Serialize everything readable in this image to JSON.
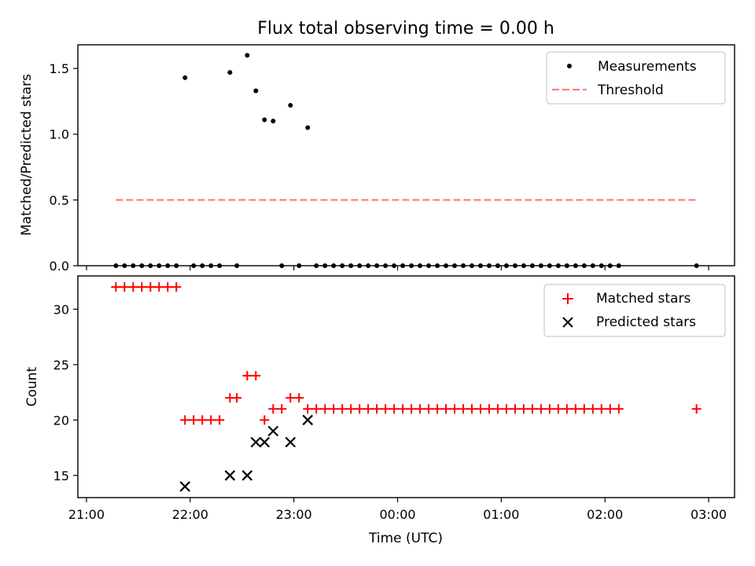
{
  "title": "Flux total observing time = 0.00 h",
  "chart_data": [
    {
      "type": "scatter",
      "ylabel": "Matched/Predicted stars",
      "ylim": [
        0,
        1.68
      ],
      "yticks": [
        0.0,
        0.5,
        1.0,
        1.5
      ],
      "ytick_labels": [
        "0.0",
        "0.5",
        "1.0",
        "1.5"
      ],
      "legend_position": "top-right",
      "series": [
        {
          "name": "Measurements",
          "kind": "points",
          "color": "#000000",
          "x": [
            "21:17",
            "21:22",
            "21:27",
            "21:32",
            "21:37",
            "21:42",
            "21:47",
            "21:52",
            "21:57",
            "22:02",
            "22:07",
            "22:12",
            "22:17",
            "22:23",
            "22:27",
            "22:33",
            "22:38",
            "22:43",
            "22:48",
            "22:53",
            "22:58",
            "23:03",
            "23:08",
            "23:13",
            "23:18",
            "23:23",
            "23:28",
            "23:33",
            "23:38",
            "23:43",
            "23:48",
            "23:53",
            "23:58",
            "00:03",
            "00:08",
            "00:13",
            "00:18",
            "00:23",
            "00:28",
            "00:33",
            "00:38",
            "00:43",
            "00:48",
            "00:53",
            "00:58",
            "01:03",
            "01:08",
            "01:13",
            "01:18",
            "01:23",
            "01:28",
            "01:33",
            "01:38",
            "01:43",
            "01:48",
            "01:53",
            "01:58",
            "02:03",
            "02:08",
            "02:53"
          ],
          "y": [
            0,
            0,
            0,
            0,
            0,
            0,
            0,
            0,
            1.43,
            0,
            0,
            0,
            0,
            1.47,
            0,
            1.6,
            1.33,
            1.11,
            1.1,
            0,
            1.22,
            0,
            1.05,
            0,
            0,
            0,
            0,
            0,
            0,
            0,
            0,
            0,
            0,
            0,
            0,
            0,
            0,
            0,
            0,
            0,
            0,
            0,
            0,
            0,
            0,
            0,
            0,
            0,
            0,
            0,
            0,
            0,
            0,
            0,
            0,
            0,
            0,
            0,
            0,
            0
          ]
        },
        {
          "name": "Threshold",
          "kind": "dashed-line",
          "color": "#ff7f7f",
          "x": [
            "21:17",
            "02:53"
          ],
          "y": [
            0.5,
            0.5
          ]
        }
      ]
    },
    {
      "type": "scatter",
      "xlabel": "Time (UTC)",
      "ylabel": "Count",
      "ylim": [
        13,
        33
      ],
      "yticks": [
        15,
        20,
        25,
        30
      ],
      "ytick_labels": [
        "15",
        "20",
        "25",
        "30"
      ],
      "xlim": [
        "20:55",
        "03:15"
      ],
      "xticks": [
        "21:00",
        "22:00",
        "23:00",
        "00:00",
        "01:00",
        "02:00",
        "03:00"
      ],
      "xtick_labels": [
        "21:00",
        "22:00",
        "23:00",
        "00:00",
        "01:00",
        "02:00",
        "03:00"
      ],
      "legend_position": "top-right",
      "series": [
        {
          "name": "Matched stars",
          "kind": "plus",
          "color": "#ff0000",
          "x": [
            "21:17",
            "21:22",
            "21:27",
            "21:32",
            "21:37",
            "21:42",
            "21:47",
            "21:52",
            "21:57",
            "22:02",
            "22:07",
            "22:12",
            "22:17",
            "22:23",
            "22:27",
            "22:33",
            "22:38",
            "22:43",
            "22:48",
            "22:53",
            "22:58",
            "23:03",
            "23:08",
            "23:13",
            "23:18",
            "23:23",
            "23:28",
            "23:33",
            "23:38",
            "23:43",
            "23:48",
            "23:53",
            "23:58",
            "00:03",
            "00:08",
            "00:13",
            "00:18",
            "00:23",
            "00:28",
            "00:33",
            "00:38",
            "00:43",
            "00:48",
            "00:53",
            "00:58",
            "01:03",
            "01:08",
            "01:13",
            "01:18",
            "01:23",
            "01:28",
            "01:33",
            "01:38",
            "01:43",
            "01:48",
            "01:53",
            "01:58",
            "02:03",
            "02:08",
            "02:53"
          ],
          "y": [
            32,
            32,
            32,
            32,
            32,
            32,
            32,
            32,
            20,
            20,
            20,
            20,
            20,
            22,
            22,
            24,
            24,
            20,
            21,
            21,
            22,
            22,
            21,
            21,
            21,
            21,
            21,
            21,
            21,
            21,
            21,
            21,
            21,
            21,
            21,
            21,
            21,
            21,
            21,
            21,
            21,
            21,
            21,
            21,
            21,
            21,
            21,
            21,
            21,
            21,
            21,
            21,
            21,
            21,
            21,
            21,
            21,
            21,
            21,
            21
          ]
        },
        {
          "name": "Predicted stars",
          "kind": "x",
          "color": "#000000",
          "x": [
            "21:57",
            "22:23",
            "22:33",
            "22:38",
            "22:43",
            "22:48",
            "22:58",
            "23:08"
          ],
          "y": [
            14,
            15,
            15,
            18,
            18,
            19,
            18,
            20
          ]
        }
      ]
    }
  ]
}
